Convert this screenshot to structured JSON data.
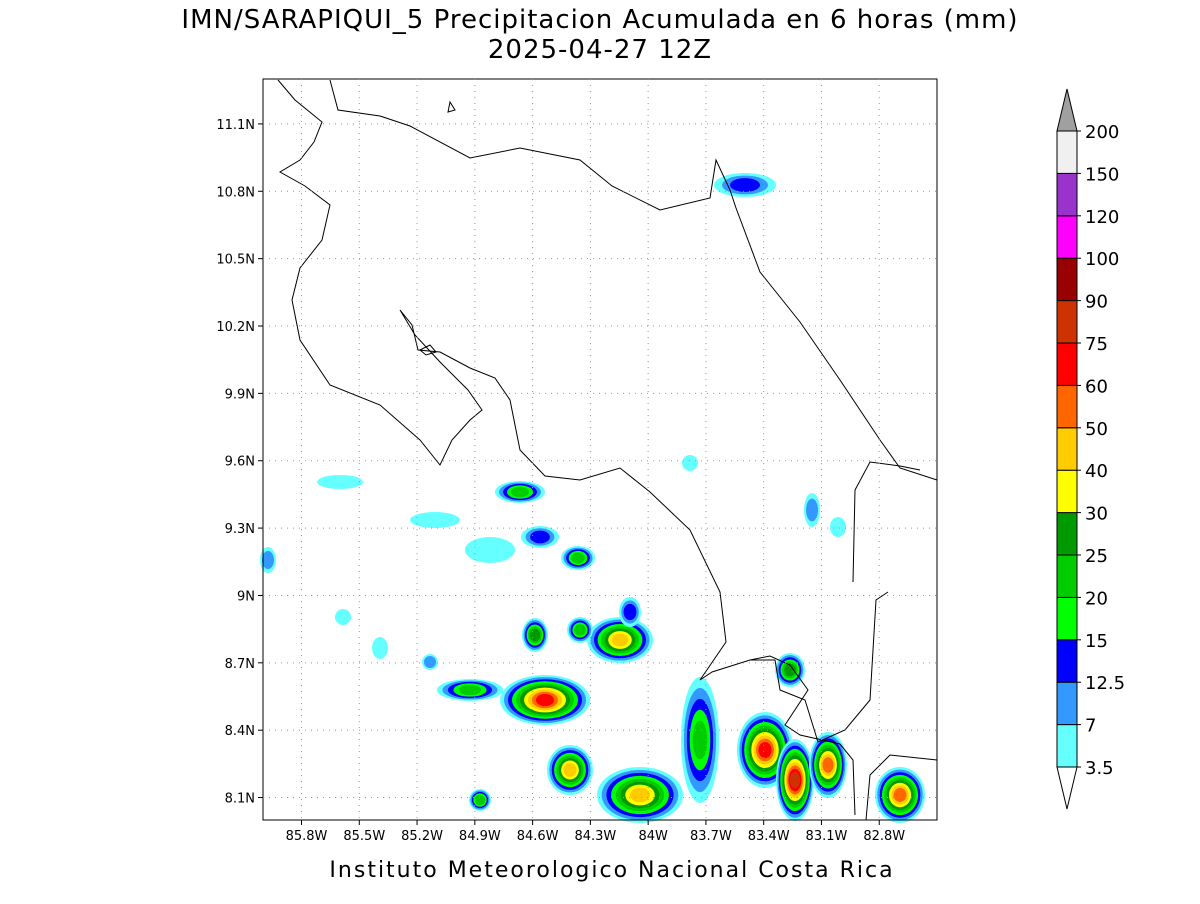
{
  "title": "IMN/SARAPIQUI_5 Precipitacion Acumulada en 6 horas (mm)",
  "subtitle": "2025-04-27 12Z",
  "footer": "Instituto Meteorologico Nacional Costa Rica",
  "map": {
    "xlim": [
      -86.0,
      -82.5
    ],
    "ylim": [
      8.0,
      11.3
    ],
    "xticks": [
      {
        "value": -85.8,
        "label": "85.8W"
      },
      {
        "value": -85.5,
        "label": "85.5W"
      },
      {
        "value": -85.2,
        "label": "85.2W"
      },
      {
        "value": -84.9,
        "label": "84.9W"
      },
      {
        "value": -84.6,
        "label": "84.6W"
      },
      {
        "value": -84.3,
        "label": "84.3W"
      },
      {
        "value": -84.0,
        "label": "84W"
      },
      {
        "value": -83.7,
        "label": "83.7W"
      },
      {
        "value": -83.4,
        "label": "83.4W"
      },
      {
        "value": -83.1,
        "label": "83.1W"
      },
      {
        "value": -82.8,
        "label": "82.8W"
      }
    ],
    "yticks": [
      {
        "value": 8.1,
        "label": "8.1N"
      },
      {
        "value": 8.4,
        "label": "8.4N"
      },
      {
        "value": 8.7,
        "label": "8.7N"
      },
      {
        "value": 9.0,
        "label": "9N"
      },
      {
        "value": 9.3,
        "label": "9.3N"
      },
      {
        "value": 9.6,
        "label": "9.6N"
      },
      {
        "value": 9.9,
        "label": "9.9N"
      },
      {
        "value": 10.2,
        "label": "10.2N"
      },
      {
        "value": 10.5,
        "label": "10.5N"
      },
      {
        "value": 10.8,
        "label": "10.8N"
      },
      {
        "value": 11.1,
        "label": "11.1N"
      }
    ],
    "grid": true
  },
  "colorbar": {
    "levels": [
      3.5,
      7,
      {
        "value": 12.5,
        "label": "12.5"
      },
      15,
      20,
      25,
      30,
      40,
      50,
      60,
      75,
      90,
      100,
      120,
      150,
      200
    ],
    "colors": [
      "#66ffff",
      "#3399ff",
      "#0000ff",
      "#00ff00",
      "#00cc00",
      "#009900",
      "#ffff00",
      "#ffcc00",
      "#ff6600",
      "#ff0000",
      "#cc3300",
      "#990000",
      "#ff00ff",
      "#9933cc",
      "#f0f0f0"
    ],
    "under_color": "#ffffff",
    "over_color": "#a0a0a0"
  }
}
